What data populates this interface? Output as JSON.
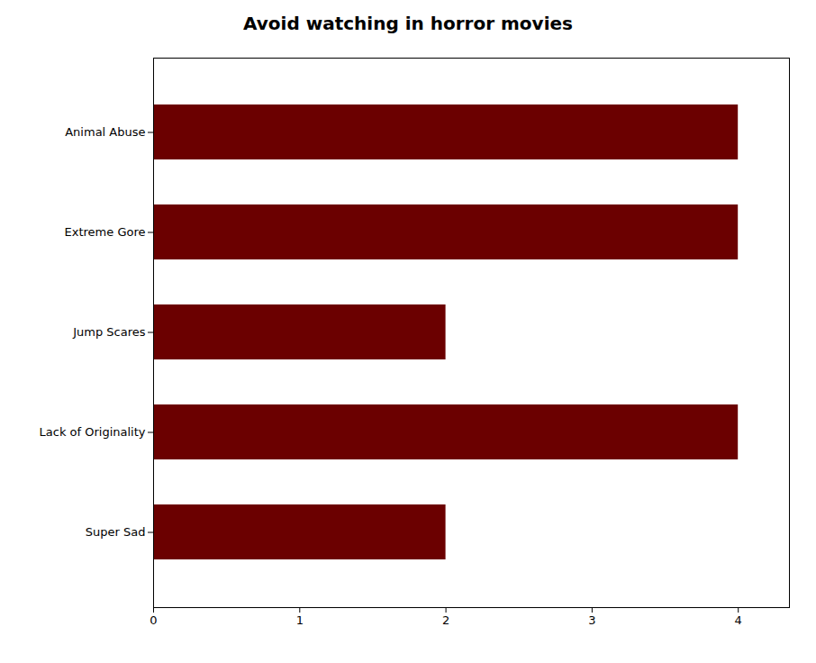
{
  "chart_data": {
    "type": "bar",
    "title": "Avoid watching in horror movies",
    "orientation": "horizontal",
    "categories": [
      "Animal Abuse",
      "Extreme Gore",
      "Jump Scares",
      "Lack of Originality",
      "Super Sad"
    ],
    "values": [
      4,
      4,
      2,
      4,
      2
    ],
    "color": "#6B0000",
    "xlim": [
      0,
      4.35
    ],
    "xticks": [
      0,
      1,
      2,
      3,
      4
    ],
    "grid": false
  }
}
